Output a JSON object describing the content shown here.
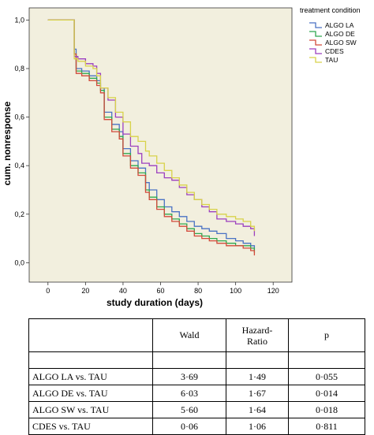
{
  "chart_data": {
    "type": "line",
    "xlabel": "study duration (days)",
    "ylabel": "cum. nonresponse",
    "xlim": [
      -10,
      130
    ],
    "ylim": [
      -0.08,
      1.05
    ],
    "xticks": [
      0,
      20,
      40,
      60,
      80,
      100,
      120
    ],
    "yticks": [
      0.0,
      0.2,
      0.4,
      0.6,
      0.8,
      1.0
    ],
    "ytick_labels": [
      "0,0",
      "0,2",
      "0,4",
      "0,6",
      "0,8",
      "1,0"
    ],
    "legend": {
      "title": "treatment condition",
      "placement": "top-right"
    },
    "background_color": "#f2efde",
    "step": true,
    "series": [
      {
        "name": "ALGO LA",
        "color": "#4a72c4",
        "x": [
          0,
          12,
          14,
          15,
          18,
          22,
          26,
          28,
          30,
          34,
          38,
          40,
          44,
          48,
          52,
          54,
          58,
          62,
          66,
          70,
          74,
          78,
          82,
          86,
          90,
          95,
          100,
          104,
          108,
          110
        ],
        "y": [
          1.0,
          1.0,
          0.88,
          0.8,
          0.79,
          0.77,
          0.75,
          0.72,
          0.62,
          0.57,
          0.54,
          0.47,
          0.42,
          0.39,
          0.33,
          0.3,
          0.26,
          0.23,
          0.21,
          0.19,
          0.17,
          0.15,
          0.14,
          0.13,
          0.12,
          0.1,
          0.09,
          0.08,
          0.07,
          0.05
        ]
      },
      {
        "name": "ALGO DE",
        "color": "#2fa84f",
        "x": [
          0,
          12,
          14,
          15,
          18,
          22,
          26,
          28,
          30,
          34,
          38,
          40,
          44,
          48,
          52,
          54,
          58,
          62,
          66,
          70,
          74,
          78,
          82,
          86,
          90,
          95,
          100,
          104,
          108,
          110
        ],
        "y": [
          1.0,
          1.0,
          0.86,
          0.79,
          0.78,
          0.76,
          0.74,
          0.71,
          0.6,
          0.55,
          0.52,
          0.45,
          0.4,
          0.37,
          0.3,
          0.27,
          0.23,
          0.2,
          0.18,
          0.16,
          0.14,
          0.12,
          0.11,
          0.1,
          0.09,
          0.08,
          0.07,
          0.07,
          0.06,
          0.04
        ]
      },
      {
        "name": "ALGO SW",
        "color": "#d24a3a",
        "x": [
          0,
          12,
          14,
          15,
          18,
          22,
          26,
          28,
          30,
          34,
          38,
          40,
          44,
          48,
          52,
          54,
          58,
          62,
          66,
          70,
          74,
          78,
          82,
          86,
          90,
          95,
          100,
          104,
          108,
          110
        ],
        "y": [
          1.0,
          1.0,
          0.86,
          0.78,
          0.77,
          0.75,
          0.73,
          0.7,
          0.59,
          0.54,
          0.51,
          0.44,
          0.39,
          0.36,
          0.29,
          0.26,
          0.22,
          0.19,
          0.17,
          0.15,
          0.13,
          0.11,
          0.1,
          0.09,
          0.08,
          0.07,
          0.07,
          0.06,
          0.05,
          0.03
        ]
      },
      {
        "name": "CDES",
        "color": "#9c3fbf",
        "x": [
          0,
          12,
          14,
          16,
          20,
          24,
          26,
          28,
          32,
          36,
          40,
          44,
          48,
          50,
          54,
          58,
          62,
          66,
          70,
          74,
          78,
          82,
          86,
          90,
          95,
          100,
          104,
          108,
          110
        ],
        "y": [
          1.0,
          1.0,
          0.85,
          0.84,
          0.82,
          0.81,
          0.78,
          0.72,
          0.67,
          0.6,
          0.53,
          0.48,
          0.45,
          0.41,
          0.4,
          0.37,
          0.35,
          0.34,
          0.31,
          0.28,
          0.26,
          0.23,
          0.21,
          0.18,
          0.17,
          0.16,
          0.15,
          0.14,
          0.11
        ]
      },
      {
        "name": "TAU",
        "color": "#d8d24a",
        "x": [
          0,
          12,
          14,
          16,
          20,
          24,
          26,
          28,
          32,
          36,
          40,
          44,
          48,
          52,
          54,
          58,
          62,
          66,
          70,
          74,
          78,
          82,
          86,
          90,
          95,
          100,
          104,
          108,
          110
        ],
        "y": [
          1.0,
          1.0,
          0.84,
          0.83,
          0.81,
          0.8,
          0.77,
          0.72,
          0.68,
          0.62,
          0.58,
          0.52,
          0.5,
          0.46,
          0.44,
          0.41,
          0.38,
          0.35,
          0.32,
          0.29,
          0.26,
          0.24,
          0.22,
          0.2,
          0.19,
          0.18,
          0.17,
          0.15,
          0.13
        ]
      }
    ]
  },
  "table": {
    "headers": {
      "comparison": "",
      "wald": "Wald",
      "hazard_ratio": "Hazard-\nRatio",
      "p": "p"
    },
    "rows": [
      {
        "comparison": "ALGO LA vs. TAU",
        "wald": "3·69",
        "hazard_ratio": "1·49",
        "p": "0·055"
      },
      {
        "comparison": "ALGO DE vs. TAU",
        "wald": "6·03",
        "hazard_ratio": "1·67",
        "p": "0·014"
      },
      {
        "comparison": "ALGO SW vs. TAU",
        "wald": "5·60",
        "hazard_ratio": "1·64",
        "p": "0·018"
      },
      {
        "comparison": "CDES vs. TAU",
        "wald": "0·06",
        "hazard_ratio": "1·06",
        "p": "0·811"
      }
    ]
  }
}
